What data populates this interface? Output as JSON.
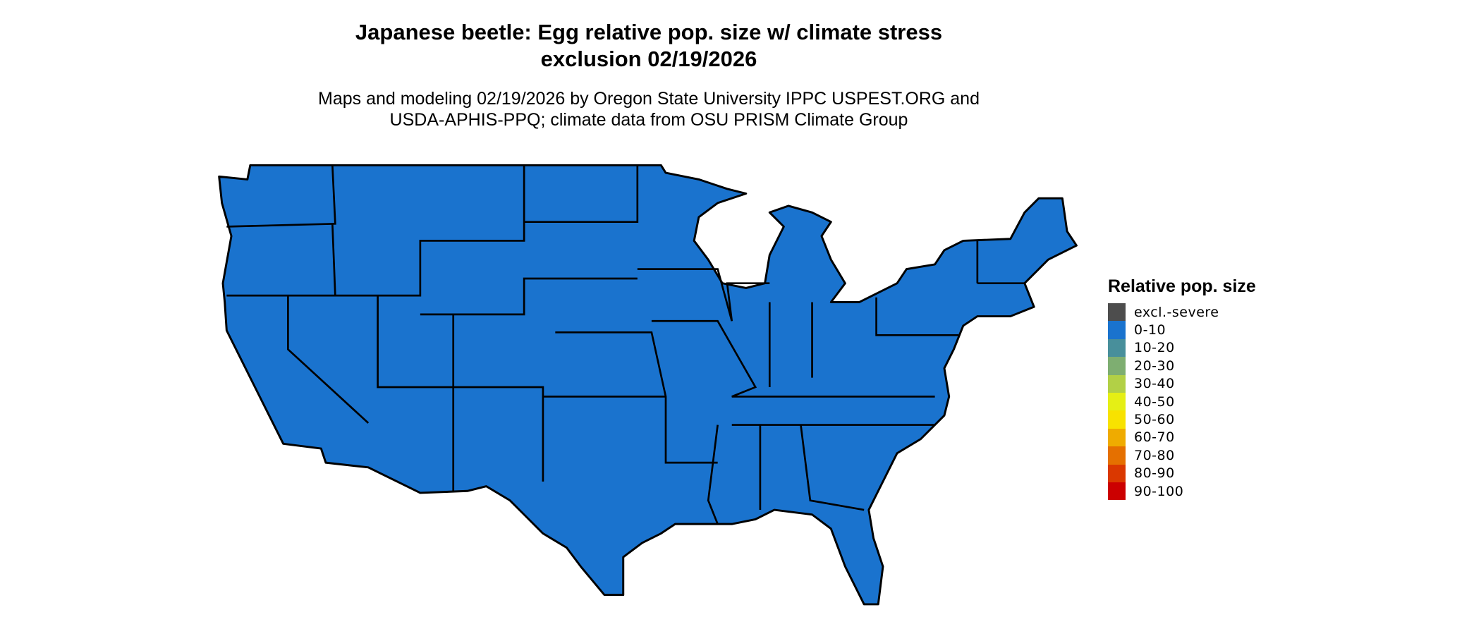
{
  "title": {
    "line1": "Japanese beetle: Egg relative pop. size w/ climate stress",
    "line2": "exclusion 02/19/2026"
  },
  "subtitle": {
    "line1": "Maps and modeling 02/19/2026 by Oregon State University IPPC USPEST.ORG and",
    "line2": "USDA-APHIS-PPQ; climate data from OSU PRISM Climate Group"
  },
  "map": {
    "region": "Contiguous United States",
    "fill_category": "0-10",
    "fill_color": "#1a73ce",
    "border_color": "#000000"
  },
  "legend": {
    "title": "Relative pop. size",
    "items": [
      {
        "label": "excl.-severe",
        "color": "#4d4d4d"
      },
      {
        "label": "0-10",
        "color": "#1a73ce"
      },
      {
        "label": "10-20",
        "color": "#488f9b"
      },
      {
        "label": "20-30",
        "color": "#7eae71"
      },
      {
        "label": "30-40",
        "color": "#b2d046"
      },
      {
        "label": "40-50",
        "color": "#e5ef15"
      },
      {
        "label": "50-60",
        "color": "#f8e200"
      },
      {
        "label": "60-70",
        "color": "#efab00"
      },
      {
        "label": "70-80",
        "color": "#e57000"
      },
      {
        "label": "80-90",
        "color": "#da3800"
      },
      {
        "label": "90-100",
        "color": "#cc0000"
      }
    ]
  }
}
